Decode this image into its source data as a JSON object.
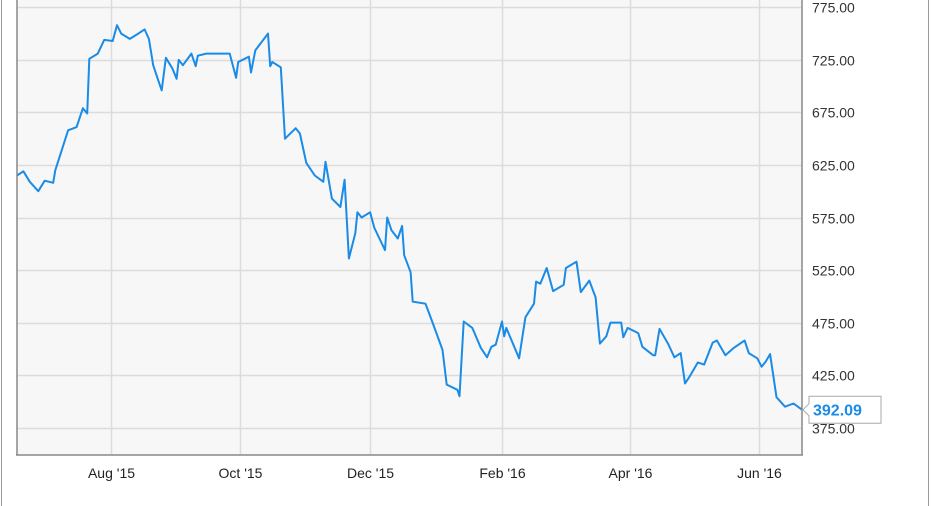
{
  "chart_data": {
    "type": "line",
    "title": "",
    "xlabel": "",
    "ylabel": "",
    "x_range": [
      "2015-06-18",
      "2016-06-21"
    ],
    "ylim": [
      349,
      782
    ],
    "grid": true,
    "line_color": "#1a8be6",
    "plot_background": "#f7f7f7",
    "y_axis_side": "right",
    "y_ticks": [
      "775.00",
      "725.00",
      "675.00",
      "625.00",
      "575.00",
      "525.00",
      "475.00",
      "425.00",
      "375.00"
    ],
    "x_ticks": [
      {
        "date": "2015-08-01",
        "label": "Aug '15"
      },
      {
        "date": "2015-10-01",
        "label": "Oct '15"
      },
      {
        "date": "2015-12-01",
        "label": "Dec '15"
      },
      {
        "date": "2016-02-01",
        "label": "Feb '16"
      },
      {
        "date": "2016-04-01",
        "label": "Apr '16"
      },
      {
        "date": "2016-06-01",
        "label": "Jun '16"
      }
    ],
    "last_value_label": "392.09",
    "points": [
      [
        "2015-06-18",
        615
      ],
      [
        "2015-06-21",
        619
      ],
      [
        "2015-06-24",
        609
      ],
      [
        "2015-06-28",
        600
      ],
      [
        "2015-07-01",
        610
      ],
      [
        "2015-07-05",
        608
      ],
      [
        "2015-07-06",
        620
      ],
      [
        "2015-07-09",
        639
      ],
      [
        "2015-07-12",
        658
      ],
      [
        "2015-07-16",
        661
      ],
      [
        "2015-07-19",
        679
      ],
      [
        "2015-07-21",
        674
      ],
      [
        "2015-07-22",
        726
      ],
      [
        "2015-07-26",
        731
      ],
      [
        "2015-07-29",
        744
      ],
      [
        "2015-08-02",
        743
      ],
      [
        "2015-08-04",
        758
      ],
      [
        "2015-08-06",
        750
      ],
      [
        "2015-08-10",
        745
      ],
      [
        "2015-08-14",
        750
      ],
      [
        "2015-08-17",
        754
      ],
      [
        "2015-08-19",
        745
      ],
      [
        "2015-08-21",
        720
      ],
      [
        "2015-08-23",
        708
      ],
      [
        "2015-08-25",
        696
      ],
      [
        "2015-08-27",
        727
      ],
      [
        "2015-08-30",
        717
      ],
      [
        "2015-09-01",
        707
      ],
      [
        "2015-09-02",
        725
      ],
      [
        "2015-09-04",
        720
      ],
      [
        "2015-09-08",
        731
      ],
      [
        "2015-09-10",
        719
      ],
      [
        "2015-09-11",
        729
      ],
      [
        "2015-09-15",
        731
      ],
      [
        "2015-09-22",
        731
      ],
      [
        "2015-09-26",
        731
      ],
      [
        "2015-09-29",
        708
      ],
      [
        "2015-09-30",
        723
      ],
      [
        "2015-10-05",
        728
      ],
      [
        "2015-10-06",
        713
      ],
      [
        "2015-10-08",
        734
      ],
      [
        "2015-10-14",
        750
      ],
      [
        "2015-10-15",
        719
      ],
      [
        "2015-10-16",
        723
      ],
      [
        "2015-10-20",
        718
      ],
      [
        "2015-10-22",
        650
      ],
      [
        "2015-10-27",
        660
      ],
      [
        "2015-10-29",
        655
      ],
      [
        "2015-11-01",
        627
      ],
      [
        "2015-11-05",
        615
      ],
      [
        "2015-11-09",
        609
      ],
      [
        "2015-11-10",
        628
      ],
      [
        "2015-11-13",
        593
      ],
      [
        "2015-11-17",
        585
      ],
      [
        "2015-11-19",
        611
      ],
      [
        "2015-11-21",
        536
      ],
      [
        "2015-11-24",
        560
      ],
      [
        "2015-11-25",
        580
      ],
      [
        "2015-11-27",
        575
      ],
      [
        "2015-12-01",
        580
      ],
      [
        "2015-12-03",
        565
      ],
      [
        "2015-12-08",
        544
      ],
      [
        "2015-12-09",
        575
      ],
      [
        "2015-12-11",
        563
      ],
      [
        "2015-12-14",
        555
      ],
      [
        "2015-12-16",
        567
      ],
      [
        "2015-12-17",
        539
      ],
      [
        "2015-12-20",
        523
      ],
      [
        "2015-12-21",
        495
      ],
      [
        "2015-12-27",
        493
      ],
      [
        "2015-12-30",
        477
      ],
      [
        "2016-01-04",
        449
      ],
      [
        "2016-01-06",
        416
      ],
      [
        "2016-01-11",
        411
      ],
      [
        "2016-01-12",
        405
      ],
      [
        "2016-01-14",
        476
      ],
      [
        "2016-01-18",
        470
      ],
      [
        "2016-01-22",
        451
      ],
      [
        "2016-01-25",
        442
      ],
      [
        "2016-01-27",
        452
      ],
      [
        "2016-01-29",
        454
      ],
      [
        "2016-02-01",
        476
      ],
      [
        "2016-02-02",
        462
      ],
      [
        "2016-02-03",
        470
      ],
      [
        "2016-02-09",
        441
      ],
      [
        "2016-02-12",
        480
      ],
      [
        "2016-02-16",
        493
      ],
      [
        "2016-02-17",
        514
      ],
      [
        "2016-02-19",
        512
      ],
      [
        "2016-02-22",
        527
      ],
      [
        "2016-02-25",
        505
      ],
      [
        "2016-03-01",
        511
      ],
      [
        "2016-03-02",
        527
      ],
      [
        "2016-03-07",
        533
      ],
      [
        "2016-03-09",
        504
      ],
      [
        "2016-03-13",
        515
      ],
      [
        "2016-03-16",
        499
      ],
      [
        "2016-03-18",
        455
      ],
      [
        "2016-03-21",
        462
      ],
      [
        "2016-03-23",
        475
      ],
      [
        "2016-03-28",
        475
      ],
      [
        "2016-03-29",
        461
      ],
      [
        "2016-03-31",
        470
      ],
      [
        "2016-04-05",
        465
      ],
      [
        "2016-04-07",
        452
      ],
      [
        "2016-04-12",
        444
      ],
      [
        "2016-04-13",
        444
      ],
      [
        "2016-04-15",
        469
      ],
      [
        "2016-04-19",
        455
      ],
      [
        "2016-04-22",
        442
      ],
      [
        "2016-04-25",
        446
      ],
      [
        "2016-04-27",
        417
      ],
      [
        "2016-04-29",
        423
      ],
      [
        "2016-05-03",
        437
      ],
      [
        "2016-05-06",
        435
      ],
      [
        "2016-05-10",
        456
      ],
      [
        "2016-05-12",
        458
      ],
      [
        "2016-05-16",
        444
      ],
      [
        "2016-05-20",
        451
      ],
      [
        "2016-05-25",
        458
      ],
      [
        "2016-05-27",
        446
      ],
      [
        "2016-05-31",
        441
      ],
      [
        "2016-06-02",
        433
      ],
      [
        "2016-06-04",
        438
      ],
      [
        "2016-06-06",
        445
      ],
      [
        "2016-06-09",
        404
      ],
      [
        "2016-06-13",
        395
      ],
      [
        "2016-06-17",
        398
      ],
      [
        "2016-06-21",
        392.09
      ]
    ]
  }
}
